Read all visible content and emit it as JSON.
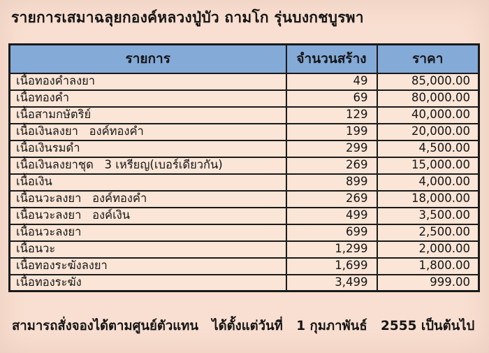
{
  "page": {
    "title": "รายการเสมาฉลุยกองค์หลวงปู่บัว ถามโก รุ่นบงกชบูรพา",
    "footer": "สามารถสั่งจองได้ตามศูนย์ตัวแทน   ได้ตั้งแต่วันที่   1 กุมภาพันธ์   2555 เป็นต้นไป"
  },
  "colors": {
    "page_bg": "#f9dfd1",
    "row_bg": "#fae5d6",
    "header_bg": "#84aad8",
    "border": "#1a1a1a",
    "text": "#151515"
  },
  "chart_data": {
    "type": "table",
    "columns": [
      "รายการ",
      "จำนวนสร้าง",
      "ราคา"
    ],
    "rows": [
      [
        "เนื้อทองคำลงยา",
        "49",
        "85,000.00"
      ],
      [
        "เนื้อทองคำ",
        "69",
        "80,000.00"
      ],
      [
        "เนื้อสามกษัตริย์",
        "129",
        "40,000.00"
      ],
      [
        "เนื้อเงินลงยา   องค์ทองคำ",
        "199",
        "20,000.00"
      ],
      [
        "เนื้อเงินรมดำ",
        "299",
        "4,500.00"
      ],
      [
        "เนื้อเงินลงยาชุด   3 เหรียญ(เบอร์เดียวกัน)",
        "269",
        "15,000.00"
      ],
      [
        "เนื้อเงิน",
        "899",
        "4,000.00"
      ],
      [
        "เนื้อนวะลงยา   องค์ทองคำ",
        "269",
        "18,000.00"
      ],
      [
        "เนื้อนวะลงยา   องค์เงิน",
        "499",
        "3,500.00"
      ],
      [
        "เนื้อนวะลงยา",
        "699",
        "2,500.00"
      ],
      [
        "เนื้อนวะ",
        "1,299",
        "2,000.00"
      ],
      [
        "เนื้อทองระฆังลงยา",
        "1,699",
        "1,800.00"
      ],
      [
        "เนื้อทองระฆัง",
        "3,499",
        "999.00"
      ]
    ]
  }
}
